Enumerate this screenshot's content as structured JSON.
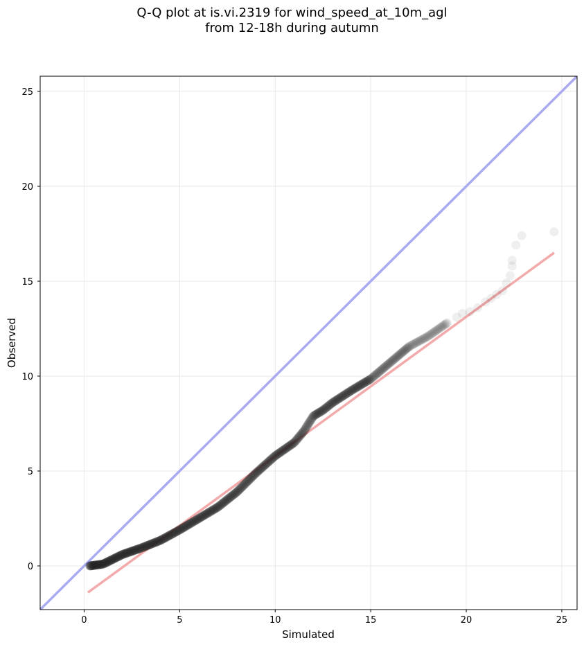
{
  "header": {
    "title_line1": "Q-Q plot at is.vi.2319 for wind_speed_at_10m_agl",
    "title_line2": "from 12-18h during autumn"
  },
  "chart_data": {
    "type": "scatter",
    "title": "Q-Q plot at is.vi.2319 for wind_speed_at_10m_agl from 12-18h during autumn",
    "xlabel": "Simulated",
    "ylabel": "Observed",
    "xlim": [
      -2.3,
      25.8
    ],
    "ylim": [
      -2.3,
      25.8
    ],
    "xticks": [
      "0",
      "5",
      "10",
      "15",
      "20",
      "25"
    ],
    "yticks": [
      "0",
      "5",
      "10",
      "15",
      "20",
      "25"
    ],
    "grid": true,
    "colors": {
      "points": "#222222",
      "identity_line": "#aaaaf2",
      "fit_line": "#f2aaaa"
    },
    "identity_line": {
      "x": [
        -2.3,
        25.8
      ],
      "y": [
        -2.3,
        25.8
      ]
    },
    "fit_line": {
      "x": [
        0.2,
        24.6
      ],
      "y": [
        -1.4,
        16.5
      ]
    },
    "quantile_anchors": {
      "x": [
        0.3,
        1.0,
        2.0,
        3.0,
        4.0,
        5.0,
        6.0,
        7.0,
        8.0,
        9.0,
        10.0,
        11.0,
        11.5,
        12.0,
        12.5,
        13.0,
        14.0,
        15.0,
        16.0,
        17.0,
        18.0,
        19.0
      ],
      "y": [
        0.0,
        0.1,
        0.6,
        0.95,
        1.35,
        1.9,
        2.5,
        3.1,
        3.9,
        4.9,
        5.8,
        6.5,
        7.1,
        7.9,
        8.2,
        8.6,
        9.25,
        9.85,
        10.7,
        11.55,
        12.1,
        12.8
      ]
    },
    "tail_points": [
      {
        "x": 19.5,
        "y": 13.1
      },
      {
        "x": 19.8,
        "y": 13.3
      },
      {
        "x": 20.2,
        "y": 13.4
      },
      {
        "x": 20.6,
        "y": 13.6
      },
      {
        "x": 21.0,
        "y": 13.9
      },
      {
        "x": 21.3,
        "y": 14.1
      },
      {
        "x": 21.6,
        "y": 14.3
      },
      {
        "x": 21.9,
        "y": 14.5
      },
      {
        "x": 22.1,
        "y": 14.9
      },
      {
        "x": 22.3,
        "y": 15.3
      },
      {
        "x": 22.4,
        "y": 15.8
      },
      {
        "x": 22.4,
        "y": 16.1
      },
      {
        "x": 22.6,
        "y": 16.9
      },
      {
        "x": 22.9,
        "y": 17.4
      },
      {
        "x": 24.6,
        "y": 17.6
      }
    ]
  }
}
